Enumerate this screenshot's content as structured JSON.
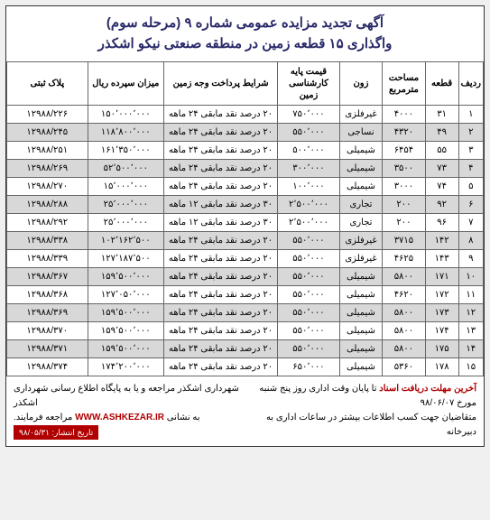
{
  "header": {
    "line1": "آگهی تجدید مزایده عمومی شماره ۹ (مرحله سوم)",
    "line2": "واگذاری ۱۵ قطعه زمین در منطقه صنعتی نیکو اشکذر"
  },
  "table": {
    "columns": [
      "ردیف",
      "قطعه",
      "مساحت مترمربع",
      "زون",
      "قیمت پایه کارشناسی زمین",
      "شرایط پرداخت وجه زمین",
      "میزان سپرده ریال",
      "پلاک ثبتی"
    ],
    "col_widths": [
      "5%",
      "7%",
      "9%",
      "9%",
      "13%",
      "24%",
      "16%",
      "17%"
    ],
    "rows": [
      [
        "۱",
        "۳۱",
        "۴۰۰۰",
        "غیرفلزی",
        "۷۵۰٬۰۰۰",
        "۲۰ درصد نقد مابقی ۲۴ ماهه",
        "۱۵۰٬۰۰۰٬۰۰۰",
        "۱۲۹۸۸/۲۲۶"
      ],
      [
        "۲",
        "۴۹",
        "۴۳۲۰",
        "نساجی",
        "۵۵۰٬۰۰۰",
        "۲۰ درصد نقد مابقی ۲۴ ماهه",
        "۱۱۸٬۸۰۰٬۰۰۰",
        "۱۲۹۸۸/۲۴۵"
      ],
      [
        "۳",
        "۵۵",
        "۶۴۵۴",
        "شیمیلی",
        "۵۰۰٬۰۰۰",
        "۲۰ درصد نقد مابقی ۲۴ ماهه",
        "۱۶۱٬۳۵۰٬۰۰۰",
        "۱۲۹۸۸/۲۵۱"
      ],
      [
        "۴",
        "۷۳",
        "۳۵۰۰",
        "شیمیلی",
        "۳۰۰٬۰۰۰",
        "۲۰ درصد نقد مابقی ۲۴ ماهه",
        "۵۲٬۵۰۰٬۰۰۰",
        "۱۲۹۸۸/۲۶۹"
      ],
      [
        "۵",
        "۷۴",
        "۳۰۰۰",
        "شیمیلی",
        "۱۰۰٬۰۰۰",
        "۲۰ درصد نقد مابقی ۲۴ ماهه",
        "۱۵٬۰۰۰٬۰۰۰",
        "۱۲۹۸۸/۲۷۰"
      ],
      [
        "۶",
        "۹۲",
        "۲۰۰",
        "تجاری",
        "۲٬۵۰۰٬۰۰۰",
        "۳۰ درصد نقد مابقی ۱۲ ماهه",
        "۲۵٬۰۰۰٬۰۰۰",
        "۱۲۹۸۸/۲۸۸"
      ],
      [
        "۷",
        "۹۶",
        "۲۰۰",
        "تجاری",
        "۲٬۵۰۰٬۰۰۰",
        "۳۰ درصد نقد مابقی ۱۲ ماهه",
        "۲۵٬۰۰۰٬۰۰۰",
        "۱۲۹۸۸/۲۹۲"
      ],
      [
        "۸",
        "۱۴۲",
        "۳۷۱۵",
        "غیرفلزی",
        "۵۵۰٬۰۰۰",
        "۲۰ درصد نقد مابقی ۲۴ ماهه",
        "۱۰۲٬۱۶۲٬۵۰۰",
        "۱۲۹۸۸/۳۳۸"
      ],
      [
        "۹",
        "۱۴۳",
        "۴۶۲۵",
        "غیرفلزی",
        "۵۵۰٬۰۰۰",
        "۲۰ درصد نقد مابقی ۲۴ ماهه",
        "۱۲۷٬۱۸۷٬۵۰۰",
        "۱۲۹۸۸/۳۳۹"
      ],
      [
        "۱۰",
        "۱۷۱",
        "۵۸۰۰",
        "شیمیلی",
        "۵۵۰٬۰۰۰",
        "۲۰ درصد نقد مابقی ۲۴ ماهه",
        "۱۵۹٬۵۰۰٬۰۰۰",
        "۱۲۹۸۸/۳۶۷"
      ],
      [
        "۱۱",
        "۱۷۲",
        "۴۶۲۰",
        "شیمیلی",
        "۵۵۰٬۰۰۰",
        "۲۰ درصد نقد مابقی ۲۴ ماهه",
        "۱۲۷٬۰۵۰٬۰۰۰",
        "۱۲۹۸۸/۳۶۸"
      ],
      [
        "۱۲",
        "۱۷۳",
        "۵۸۰۰",
        "شیمیلی",
        "۵۵۰٬۰۰۰",
        "۲۰ درصد نقد مابقی ۲۴ ماهه",
        "۱۵۹٬۵۰۰٬۰۰۰",
        "۱۲۹۸۸/۳۶۹"
      ],
      [
        "۱۳",
        "۱۷۴",
        "۵۸۰۰",
        "شیمیلی",
        "۵۵۰٬۰۰۰",
        "۲۰ درصد نقد مابقی ۲۴ ماهه",
        "۱۵۹٬۵۰۰٬۰۰۰",
        "۱۲۹۸۸/۳۷۰"
      ],
      [
        "۱۴",
        "۱۷۵",
        "۵۸۰۰",
        "شیمیلی",
        "۵۵۰٬۰۰۰",
        "۲۰ درصد نقد مابقی ۲۴ ماهه",
        "۱۵۹٬۵۰۰٬۰۰۰",
        "۱۲۹۸۸/۳۷۱"
      ],
      [
        "۱۵",
        "۱۷۸",
        "۵۳۶۰",
        "شیمیلی",
        "۶۵۰٬۰۰۰",
        "۲۰ درصد نقد مابقی ۲۴ ماهه",
        "۱۷۴٬۲۰۰٬۰۰۰",
        "۱۲۹۸۸/۳۷۴"
      ]
    ]
  },
  "footer": {
    "deadline": "آخرین مهلت دریافت اسناد",
    "deadline_rest": "تا پایان وقت اداری روز پنج شنبه",
    "date": "مورخ ۹۸/۰۶/۰۷",
    "more_info": "متقاضیان جهت کسب اطلاعات بیشتر در ساعات اداری به دبیرخانه",
    "office": "شهرداری اشکذر مراجعه و یا به پایگاه اطلاع رسانی شهرداری اشکذر",
    "website_label": "به نشانی",
    "website": "WWW.ASHKEZAR.IR",
    "website_end": "مراجعه فرمایند.",
    "publish": "تاریخ انتشار: ۹۸/۰۵/۳۱"
  },
  "style": {
    "header_color": "#2a2a6a",
    "alt_row_bg": "#d8d8d8",
    "border_color": "#666666",
    "red": "#b00000"
  }
}
